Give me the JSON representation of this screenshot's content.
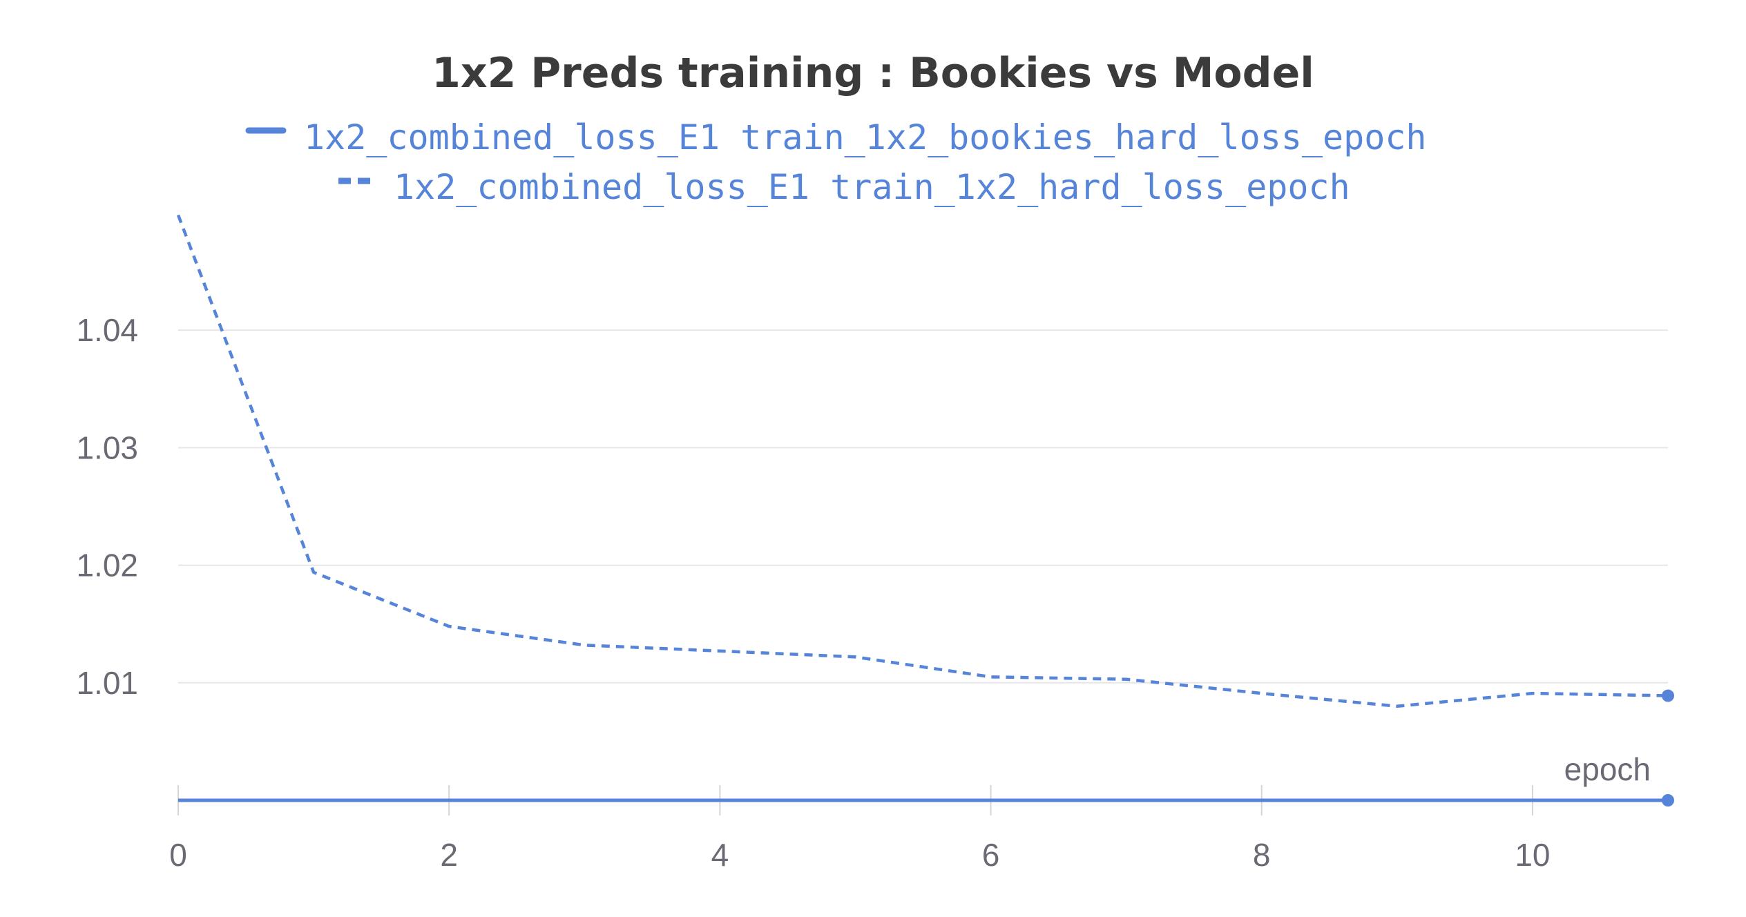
{
  "colors": {
    "series": "#5584d8",
    "grid": "#e6e6ea",
    "text": "#6a6a75",
    "title": "#3b3b3b"
  },
  "chart_data": {
    "type": "line",
    "title": "1x2 Preds training : Bookies vs Model",
    "xlabel": "epoch",
    "ylabel": "",
    "xlim": [
      0,
      11
    ],
    "ylim": [
      1.0,
      1.049
    ],
    "x_ticks": [
      0,
      2,
      4,
      6,
      8,
      10
    ],
    "y_ticks": [
      1.01,
      1.02,
      1.03,
      1.04
    ],
    "x_tick_labels": [
      "0",
      "2",
      "4",
      "6",
      "8",
      "10"
    ],
    "y_tick_labels": [
      "1.01",
      "1.02",
      "1.03",
      "1.04"
    ],
    "grid": true,
    "legend_position": "top-center",
    "series": [
      {
        "name": "1x2_combined_loss_E1 train_1x2_bookies_hard_loss_epoch",
        "style": "solid",
        "x": [
          0,
          1,
          2,
          3,
          4,
          5,
          6,
          7,
          8,
          9,
          10,
          11
        ],
        "values": [
          1.0,
          1.0,
          1.0,
          1.0,
          1.0,
          1.0,
          1.0,
          1.0,
          1.0,
          1.0,
          1.0,
          1.0
        ]
      },
      {
        "name": "1x2_combined_loss_E1 train_1x2_hard_loss_epoch",
        "style": "dashed",
        "x": [
          0,
          1,
          2,
          3,
          4,
          5,
          6,
          7,
          8,
          9,
          10,
          11
        ],
        "values": [
          1.0498,
          1.0194,
          1.0148,
          1.0132,
          1.0127,
          1.0122,
          1.0105,
          1.0103,
          1.0091,
          1.008,
          1.0091,
          1.0089
        ]
      }
    ]
  }
}
